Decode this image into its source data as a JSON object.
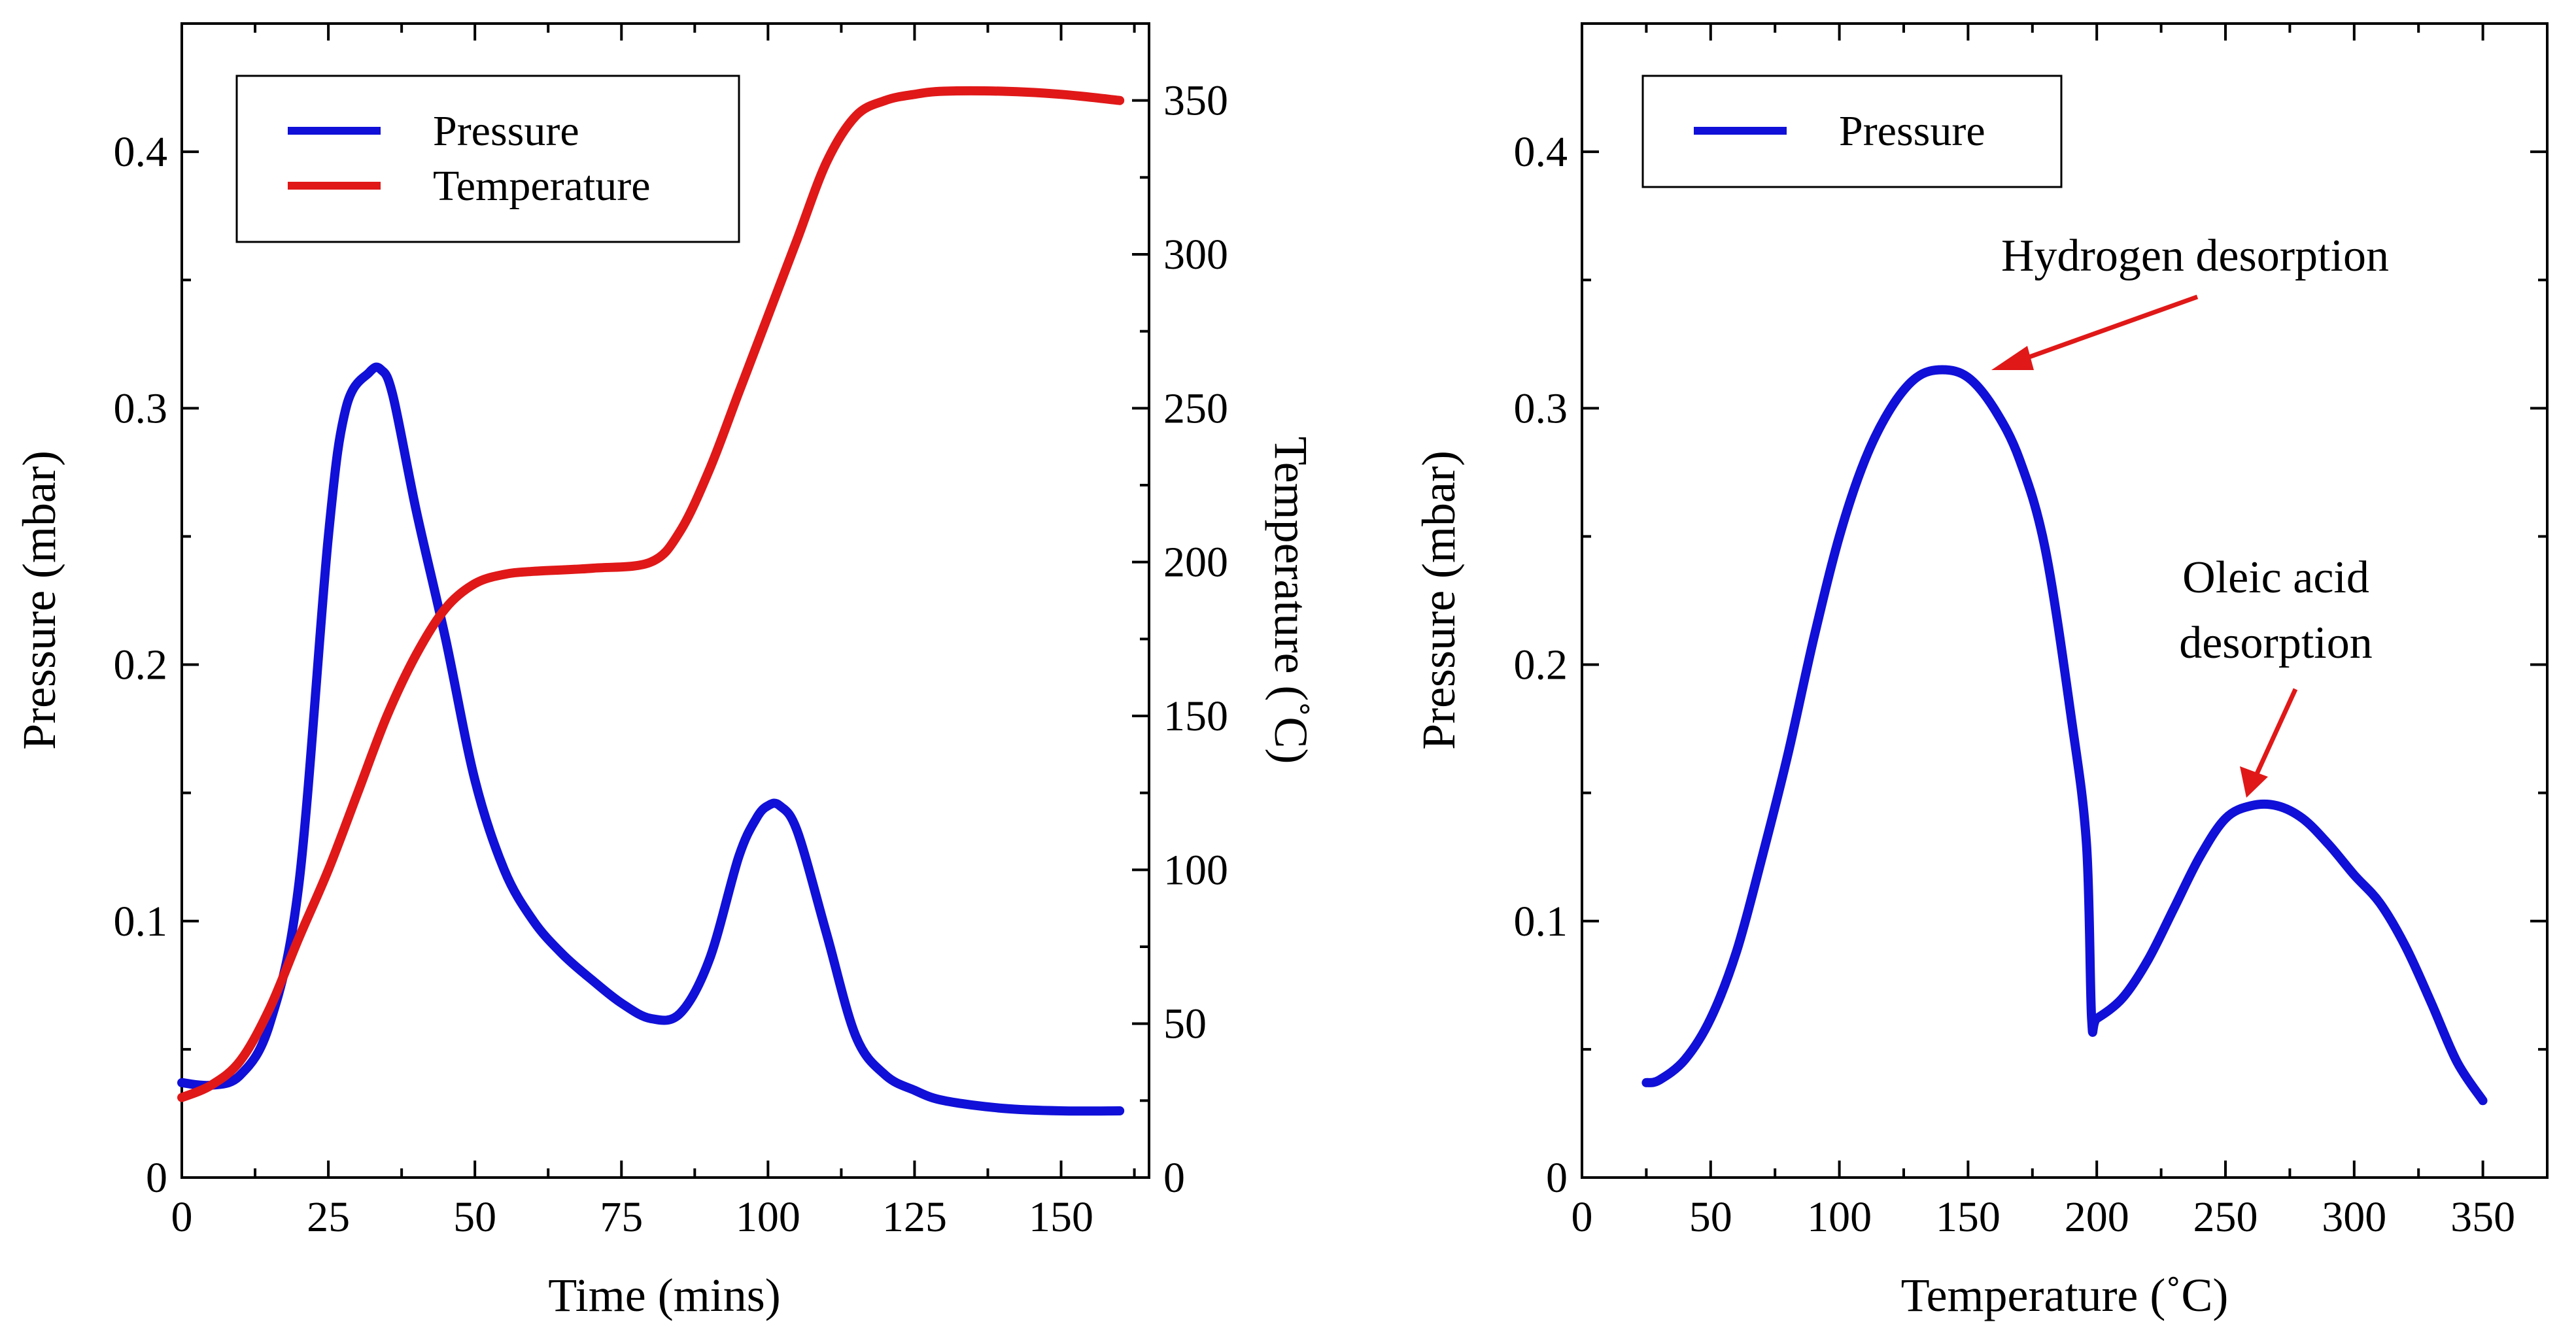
{
  "chart_data": [
    {
      "type": "line",
      "xlabel": "Time (mins)",
      "ylabel": "Pressure (mbar)",
      "y2label": "Temperature (˚C)",
      "xlim": [
        0,
        165
      ],
      "ylim": [
        0,
        0.45
      ],
      "y2lim": [
        0,
        375
      ],
      "xticks": [
        "0",
        "25",
        "50",
        "75",
        "100",
        "125",
        "150"
      ],
      "yticks": [
        "0",
        "0.1",
        "0.2",
        "0.3",
        "0.4"
      ],
      "y2ticks": [
        "0",
        "50",
        "100",
        "150",
        "200",
        "250",
        "300",
        "350"
      ],
      "legend_position": "top-left",
      "series": [
        {
          "name": "Pressure",
          "axis": "left",
          "color": "#1010d8",
          "x": [
            0,
            5,
            10,
            15,
            20,
            25,
            28,
            32,
            34,
            36,
            40,
            45,
            50,
            55,
            60,
            65,
            70,
            75,
            80,
            85,
            90,
            95,
            98,
            100,
            102,
            105,
            110,
            115,
            120,
            125,
            130,
            140,
            150,
            160
          ],
          "y": [
            0.037,
            0.036,
            0.04,
            0.06,
            0.115,
            0.25,
            0.3,
            0.314,
            0.315,
            0.305,
            0.26,
            0.21,
            0.155,
            0.12,
            0.1,
            0.087,
            0.077,
            0.068,
            0.062,
            0.064,
            0.085,
            0.125,
            0.14,
            0.145,
            0.145,
            0.135,
            0.095,
            0.055,
            0.04,
            0.034,
            0.03,
            0.027,
            0.026,
            0.026
          ]
        },
        {
          "name": "Temperature",
          "axis": "right",
          "color": "#e01818",
          "x": [
            0,
            5,
            10,
            15,
            20,
            25,
            30,
            35,
            40,
            45,
            50,
            55,
            60,
            70,
            80,
            85,
            90,
            95,
            100,
            105,
            110,
            115,
            120,
            125,
            130,
            140,
            150,
            160
          ],
          "y": [
            26,
            30,
            38,
            55,
            78,
            100,
            125,
            150,
            170,
            185,
            193,
            196,
            197,
            198,
            200,
            210,
            230,
            255,
            280,
            305,
            330,
            345,
            350,
            352,
            353,
            353,
            352,
            350
          ]
        }
      ]
    },
    {
      "type": "line",
      "xlabel": "Temperature (˚C)",
      "ylabel": "Pressure (mbar)",
      "xlim": [
        0,
        375
      ],
      "ylim": [
        0,
        0.45
      ],
      "xticks": [
        "0",
        "50",
        "100",
        "150",
        "200",
        "250",
        "300",
        "350"
      ],
      "yticks": [
        "0",
        "0.1",
        "0.2",
        "0.3",
        "0.4"
      ],
      "legend_position": "top-left",
      "series": [
        {
          "name": "Pressure",
          "color": "#1010d8",
          "x": [
            25,
            30,
            40,
            50,
            60,
            70,
            80,
            90,
            100,
            110,
            120,
            130,
            140,
            150,
            160,
            170,
            180,
            190,
            196,
            198,
            200,
            210,
            220,
            230,
            240,
            250,
            260,
            270,
            280,
            290,
            300,
            310,
            320,
            330,
            340,
            350
          ],
          "y": [
            0.037,
            0.038,
            0.046,
            0.062,
            0.088,
            0.125,
            0.165,
            0.21,
            0.25,
            0.28,
            0.3,
            0.312,
            0.315,
            0.312,
            0.3,
            0.28,
            0.245,
            0.18,
            0.13,
            0.062,
            0.062,
            0.07,
            0.085,
            0.105,
            0.125,
            0.14,
            0.145,
            0.145,
            0.14,
            0.13,
            0.118,
            0.107,
            0.09,
            0.068,
            0.045,
            0.03
          ]
        }
      ],
      "annotations": [
        {
          "text": "Hydrogen desorption",
          "x": 150,
          "y": 0.315
        },
        {
          "text_lines": [
            "Oleic acid",
            "desorption"
          ],
          "x": 272,
          "y": 0.146
        }
      ]
    }
  ]
}
